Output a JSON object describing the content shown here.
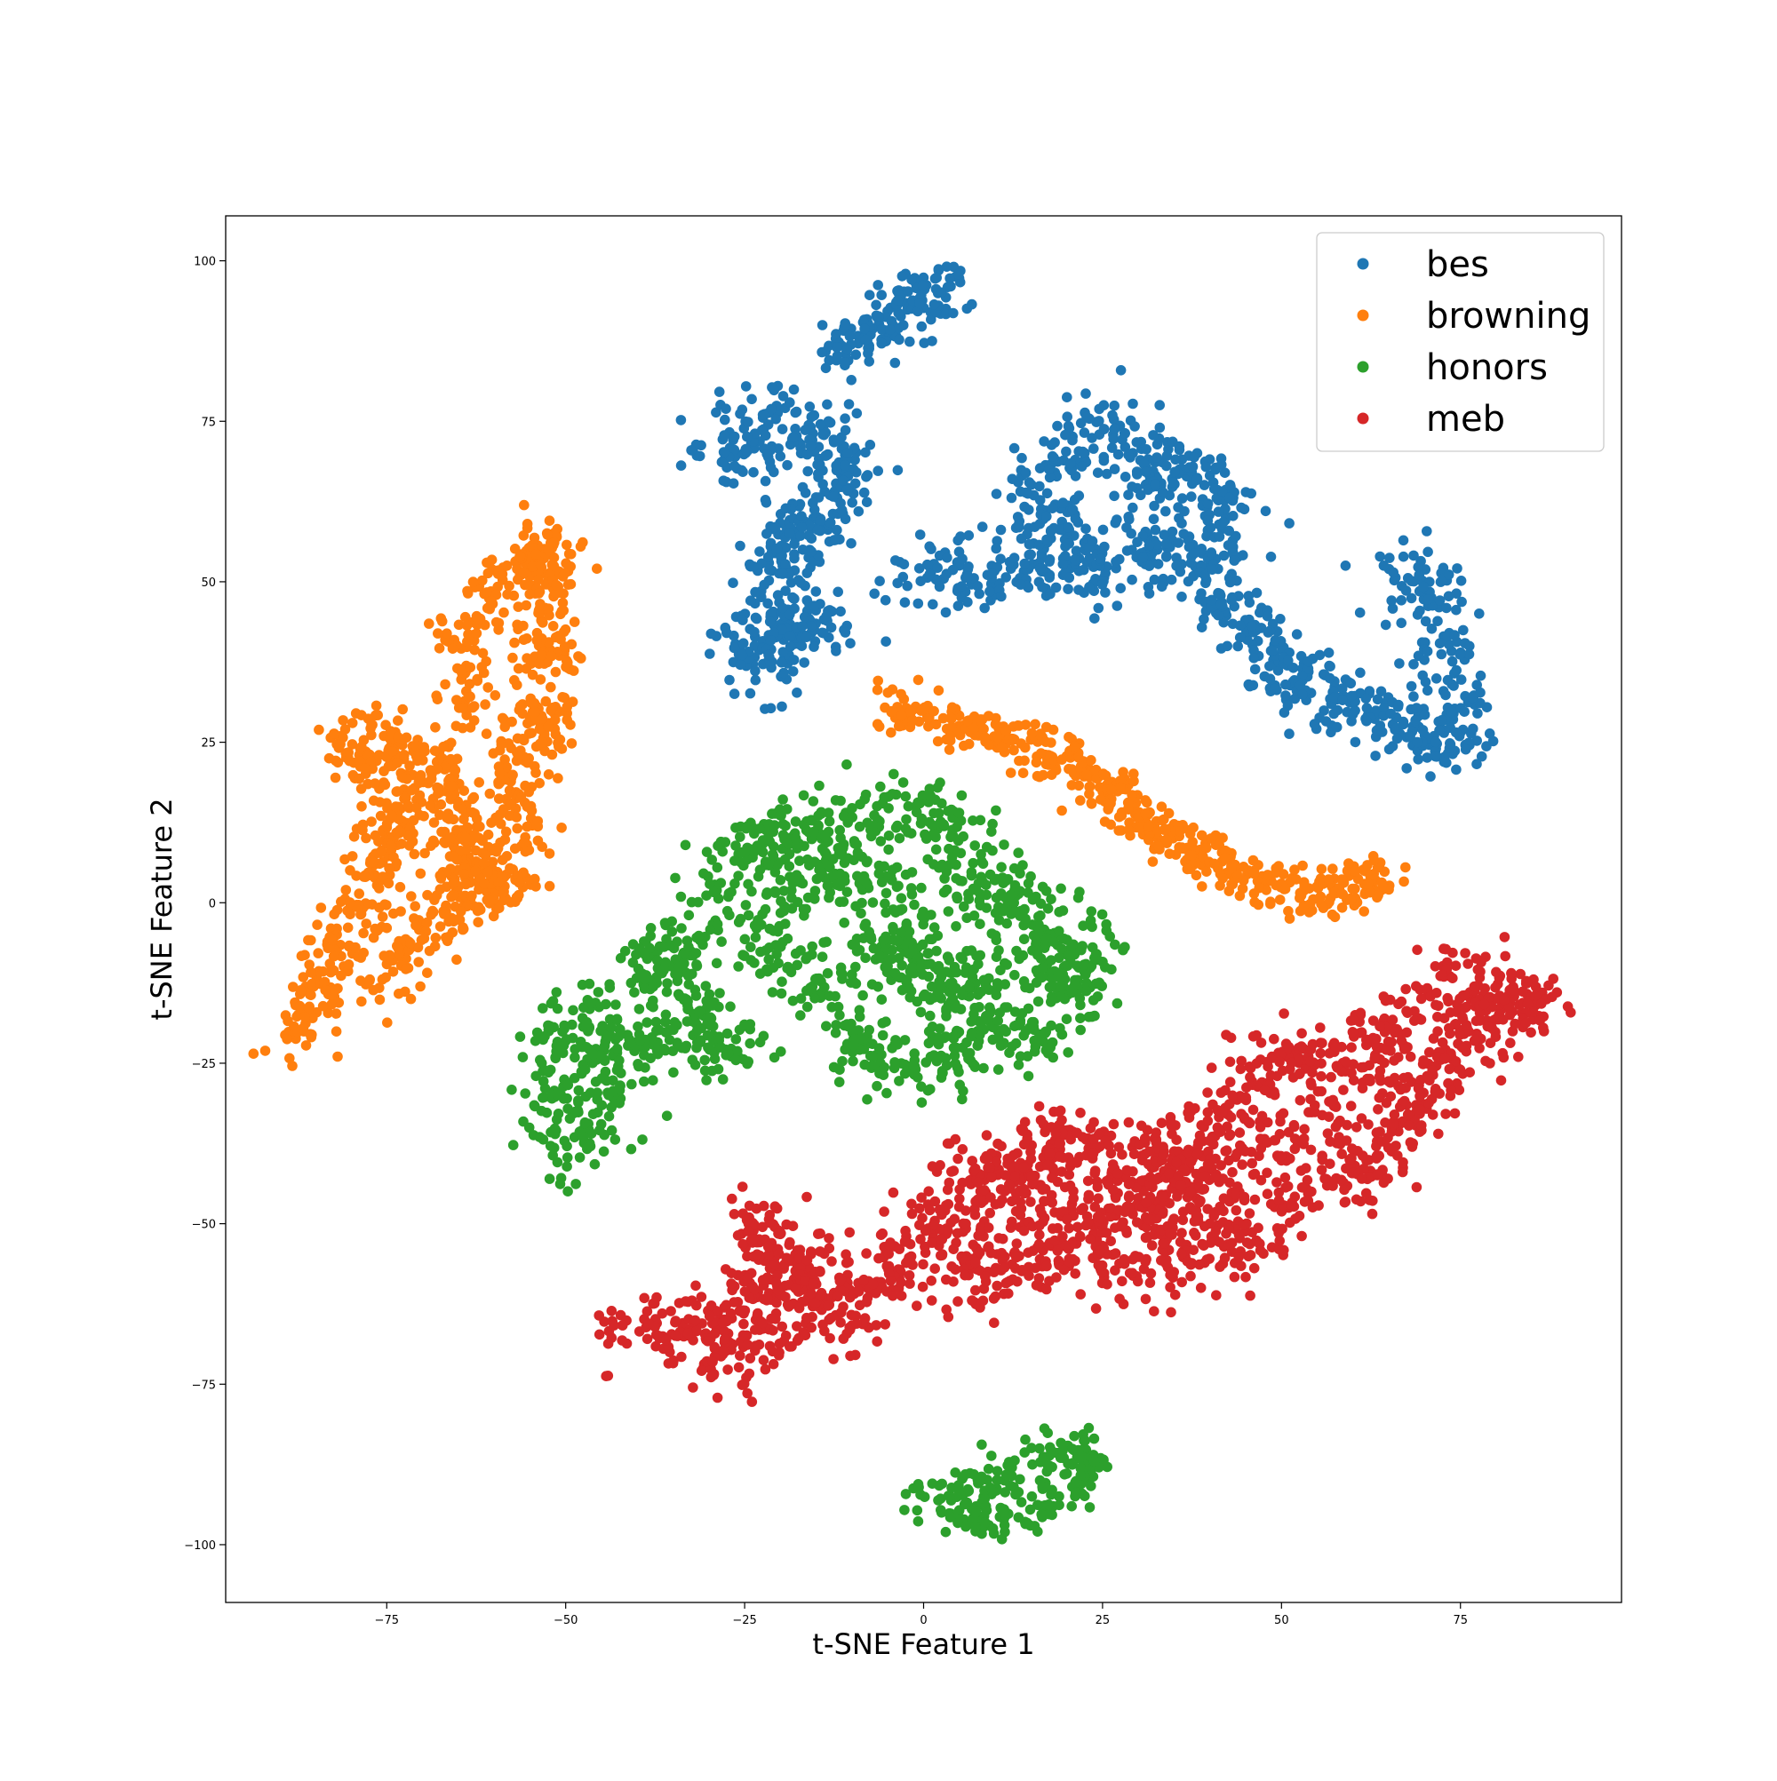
{
  "chart_data": {
    "type": "scatter",
    "title": "",
    "xlabel": "t-SNE Feature 1",
    "ylabel": "t-SNE Feature 2",
    "xlim": [
      -97.5,
      97.5
    ],
    "ylim": [
      -109,
      107
    ],
    "xticks": [
      -75,
      -50,
      -25,
      0,
      25,
      50,
      75
    ],
    "yticks": [
      -100,
      -75,
      -50,
      -25,
      0,
      25,
      50,
      75,
      100
    ],
    "grid": false,
    "legend_position": "upper-right",
    "series": [
      {
        "name": "bes",
        "color": "#1f77b4",
        "clusters": [
          {
            "path": [
              [
                -12,
                85
              ],
              [
                -8,
                88
              ],
              [
                -4,
                91
              ],
              [
                0,
                94
              ],
              [
                5,
                95
              ]
            ],
            "spread": 2.2,
            "n": 150
          },
          {
            "path": [
              [
                -28,
                70
              ],
              [
                -24,
                72
              ],
              [
                -20,
                76
              ],
              [
                -15,
                72
              ],
              [
                -11,
                70
              ],
              [
                -13,
                62
              ],
              [
                -17,
                58
              ],
              [
                -20,
                54
              ],
              [
                -21,
                48
              ],
              [
                -20,
                43
              ],
              [
                -24,
                40
              ],
              [
                -22,
                36
              ],
              [
                -17,
                42
              ],
              [
                -13,
                44
              ]
            ],
            "spread": 2.8,
            "n": 460
          },
          {
            "path": [
              [
                -2,
                52
              ],
              [
                4,
                52
              ],
              [
                10,
                50
              ],
              [
                15,
                52
              ],
              [
                18,
                58
              ],
              [
                14,
                64
              ],
              [
                20,
                70
              ],
              [
                24,
                76
              ],
              [
                30,
                72
              ],
              [
                32,
                66
              ],
              [
                36,
                68
              ],
              [
                41,
                64
              ],
              [
                44,
                58
              ],
              [
                38,
                55
              ],
              [
                31,
                55
              ],
              [
                24,
                57
              ],
              [
                21,
                50
              ],
              [
                40,
                50
              ],
              [
                44,
                45
              ],
              [
                48,
                40
              ],
              [
                51,
                36
              ],
              [
                55,
                33
              ],
              [
                60,
                31
              ],
              [
                65,
                29
              ],
              [
                70,
                25
              ],
              [
                74,
                24
              ],
              [
                75,
                30
              ],
              [
                74,
                38
              ],
              [
                72,
                47
              ],
              [
                68,
                52
              ],
              [
                64,
                47
              ]
            ],
            "spread": 2.6,
            "n": 950
          }
        ]
      },
      {
        "name": "browning",
        "color": "#ff7f0e",
        "clusters": [
          {
            "path": [
              [
                -5,
                30
              ],
              [
                2,
                29
              ],
              [
                8,
                27
              ],
              [
                14,
                25
              ],
              [
                20,
                22
              ],
              [
                25,
                18
              ],
              [
                30,
                14
              ],
              [
                35,
                10
              ],
              [
                40,
                7
              ],
              [
                46,
                3
              ],
              [
                52,
                2
              ],
              [
                58,
                2
              ],
              [
                64,
                4
              ]
            ],
            "spread": 1.9,
            "n": 500
          },
          {
            "path": [
              [
                -88,
                -22
              ],
              [
                -85,
                -15
              ],
              [
                -82,
                -8
              ],
              [
                -80,
                -2
              ],
              [
                -76,
                5
              ],
              [
                -74,
                12
              ],
              [
                -72,
                18
              ],
              [
                -78,
                22
              ],
              [
                -80,
                27
              ],
              [
                -70,
                24
              ],
              [
                -66,
                18
              ],
              [
                -64,
                10
              ],
              [
                -62,
                2
              ],
              [
                -68,
                -2
              ],
              [
                -72,
                -8
              ],
              [
                -76,
                -14
              ],
              [
                -66,
                28
              ],
              [
                -62,
                34
              ],
              [
                -64,
                42
              ],
              [
                -60,
                48
              ],
              [
                -56,
                52
              ],
              [
                -53,
                56
              ],
              [
                -51,
                53
              ],
              [
                -53,
                45
              ],
              [
                -53,
                37
              ],
              [
                -52,
                28
              ],
              [
                -56,
                26
              ],
              [
                -58,
                17
              ],
              [
                -56,
                10
              ],
              [
                -58,
                4
              ],
              [
                -61,
                0
              ],
              [
                -67,
                12
              ]
            ],
            "spread": 2.3,
            "n": 1100
          }
        ]
      },
      {
        "name": "honors",
        "color": "#2ca02c",
        "clusters": [
          {
            "path": [
              [
                -50,
                -40
              ],
              [
                -52,
                -34
              ],
              [
                -51,
                -26
              ],
              [
                -51,
                -20
              ],
              [
                -46,
                -17
              ],
              [
                -44,
                -24
              ],
              [
                -48,
                -30
              ],
              [
                -45,
                -38
              ],
              [
                -40,
                -24
              ],
              [
                -35,
                -21
              ],
              [
                -33,
                -16
              ],
              [
                -28,
                -19
              ],
              [
                -26,
                -24
              ],
              [
                -40,
                -8
              ],
              [
                -36,
                -10
              ],
              [
                -32,
                -4
              ],
              [
                -38,
                -14
              ],
              [
                -30,
                0
              ],
              [
                -27,
                4
              ],
              [
                -25,
                9
              ],
              [
                -20,
                10
              ],
              [
                -16,
                12
              ],
              [
                -12,
                10
              ],
              [
                -8,
                13
              ],
              [
                -3,
                14
              ],
              [
                1,
                14
              ],
              [
                5,
                12
              ],
              [
                7,
                6
              ],
              [
                10,
                2
              ],
              [
                13,
                0
              ],
              [
                16,
                -5
              ],
              [
                19,
                -10
              ],
              [
                21,
                -13
              ],
              [
                24,
                -10
              ],
              [
                22,
                -4
              ],
              [
                18,
                -20
              ],
              [
                14,
                -22
              ],
              [
                9,
                -20
              ],
              [
                5,
                -25
              ],
              [
                0,
                -25
              ],
              [
                -6,
                -24
              ],
              [
                -10,
                -20
              ],
              [
                -14,
                -14
              ],
              [
                -18,
                -10
              ],
              [
                -22,
                -6
              ],
              [
                -18,
                4
              ],
              [
                -13,
                4
              ],
              [
                -8,
                4
              ],
              [
                -3,
                2
              ],
              [
                1,
                -3
              ],
              [
                -4,
                -8
              ],
              [
                -10,
                -8
              ],
              [
                1,
                -16
              ],
              [
                5,
                -14
              ],
              [
                10,
                -12
              ],
              [
                -2,
                -12
              ],
              [
                3,
                -8
              ]
            ],
            "spread": 2.8,
            "n": 1500
          },
          {
            "path": [
              [
                0,
                -94
              ],
              [
                5,
                -90
              ],
              [
                9,
                -92
              ],
              [
                12,
                -88
              ],
              [
                16,
                -86
              ],
              [
                20,
                -88
              ],
              [
                23,
                -85
              ],
              [
                22,
                -90
              ],
              [
                18,
                -94
              ],
              [
                13,
                -96
              ],
              [
                8,
                -97
              ],
              [
                3,
                -96
              ],
              [
                14,
                -92
              ]
            ],
            "spread": 1.9,
            "n": 230
          }
        ]
      },
      {
        "name": "meb",
        "color": "#d62728",
        "clusters": [
          {
            "path": [
              [
                -44,
                -68
              ],
              [
                -38,
                -66
              ],
              [
                -33,
                -65
              ],
              [
                -28,
                -67
              ],
              [
                -24,
                -62
              ],
              [
                -22,
                -56
              ],
              [
                -23,
                -48
              ],
              [
                -20,
                -60
              ],
              [
                -16,
                -56
              ],
              [
                -14,
                -62
              ],
              [
                -11,
                -66
              ],
              [
                -8,
                -60
              ],
              [
                -4,
                -58
              ],
              [
                -2,
                -52
              ],
              [
                2,
                -48
              ],
              [
                6,
                -56
              ],
              [
                9,
                -60
              ],
              [
                13,
                -57
              ],
              [
                18,
                -55
              ],
              [
                24,
                -56
              ],
              [
                30,
                -58
              ],
              [
                36,
                -55
              ],
              [
                42,
                -54
              ],
              [
                48,
                -52
              ],
              [
                52,
                -45
              ],
              [
                58,
                -43
              ],
              [
                62,
                -40
              ],
              [
                66,
                -36
              ],
              [
                70,
                -32
              ],
              [
                70,
                -26
              ],
              [
                74,
                -22
              ],
              [
                78,
                -18
              ],
              [
                82,
                -16
              ],
              [
                85,
                -17
              ],
              [
                80,
                -12
              ],
              [
                72,
                -12
              ],
              [
                66,
                -20
              ],
              [
                60,
                -22
              ],
              [
                56,
                -28
              ],
              [
                50,
                -22
              ],
              [
                45,
                -30
              ],
              [
                40,
                -36
              ],
              [
                35,
                -40
              ],
              [
                30,
                -40
              ],
              [
                25,
                -38
              ],
              [
                20,
                -36
              ],
              [
                15,
                -40
              ],
              [
                12,
                -44
              ],
              [
                8,
                -40
              ],
              [
                5,
                -46
              ],
              [
                22,
                -46
              ],
              [
                28,
                -48
              ],
              [
                34,
                -44
              ],
              [
                40,
                -44
              ],
              [
                46,
                -42
              ],
              [
                52,
                -36
              ],
              [
                58,
                -32
              ],
              [
                -30,
                -72
              ],
              [
                -22,
                -71
              ],
              [
                -18,
                -64
              ],
              [
                -34,
                -68
              ],
              [
                40,
                -48
              ],
              [
                30,
                -50
              ],
              [
                15,
                -50
              ],
              [
                60,
                -28
              ],
              [
                74,
                -26
              ]
            ],
            "spread": 2.7,
            "n": 2000
          }
        ]
      }
    ]
  }
}
